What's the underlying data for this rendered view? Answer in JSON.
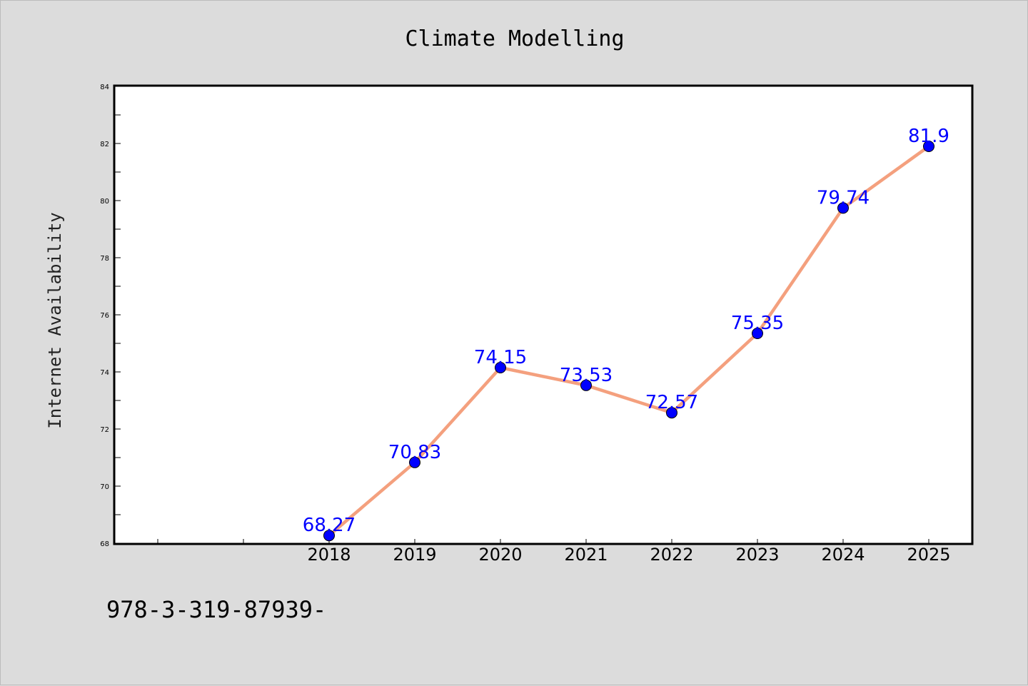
{
  "chart_data": {
    "type": "line",
    "title": "Climate Modelling",
    "xlabel": "",
    "ylabel": "Internet Availability",
    "categories": [
      "2018",
      "2019",
      "2020",
      "2021",
      "2022",
      "2023",
      "2024",
      "2025"
    ],
    "series": [
      {
        "values": [
          68.27,
          70.83,
          74.15,
          73.53,
          72.57,
          75.35,
          79.74,
          81.9
        ],
        "line_color": "#f4a07e",
        "marker_color": "#0000ff"
      }
    ],
    "data_labels": [
      "68.27",
      "70.83",
      "74.15",
      "73.53",
      "72.57",
      "75.35",
      "79.74",
      "81.9"
    ],
    "ylim": [
      68,
      84
    ],
    "yticks": [
      68,
      70,
      72,
      74,
      76,
      78,
      80,
      82,
      84
    ],
    "grid": false,
    "legend": "none",
    "label_color": "#0000ff"
  },
  "footer": {
    "text": "978-3-319-87939-"
  },
  "colors": {
    "background": "#dcdcdc",
    "plot_background": "#ffffff"
  }
}
